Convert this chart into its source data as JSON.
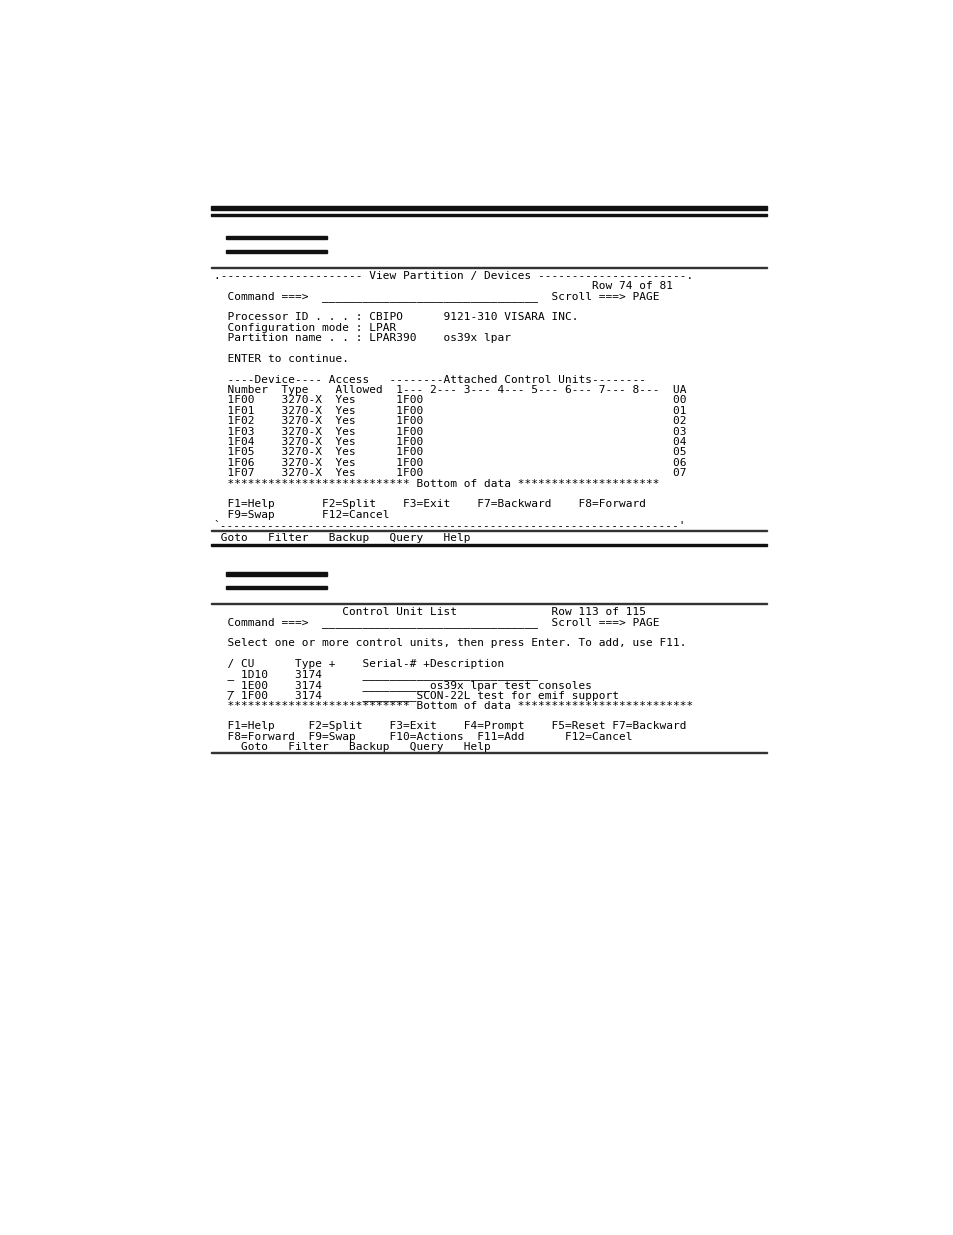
{
  "bg_color": "#ffffff",
  "text_color": "#000000",
  "panel1_lines": [
    ".--------------------- View Partition / Devices ----------------------.",
    "|                                                      Row 74 of 81  |",
    "|  Command ===>  ________________________________  Scroll ===> PAGE  |",
    "|                                                                    |",
    "|  Processor ID . . . : CBIPO      9121-310 VISARA INC.             |",
    "|  Configuration mode : LPAR                                        |",
    "|  Partition name . . : LPAR390    os39x lpar                       |",
    "|                                                                    |",
    "|  ENTER to continue.                                                |",
    "|                                                                    |",
    "|  ----Device---- Access   --------Attached Control Units--------   |",
    "|  Number  Type    Allowed  1--- 2--- 3--- 4--- 5--- 6--- 7--- 8--- UA|",
    "|  1F00    3270-X  Yes      1F00                                   00|",
    "|  1F01    3270-X  Yes      1F00                                   01|",
    "|  1F02    3270-X  Yes      1F00                                   02|",
    "|  1F03    3270-X  Yes      1F00                                   03|",
    "|  1F04    3270-X  Yes      1F00                                   04|",
    "|  1F05    3270-X  Yes      1F00                                   05|",
    "|  1F06    3270-X  Yes      1F00                                   06|",
    "|  1F07    3270-X  Yes      1F00                                   07|",
    "|  ************************** Bottom of data *********************  |",
    "|                                                                    |",
    "|  F1=Help       F2=Split    F3=Exit    F7=Backward    F8=Forward   |",
    "|  F9=Swap       F12=Cancel                                         |",
    "`--------------------------------------------------------------------'"
  ],
  "panel1_raw": [
    ".--------------------- View Partition / Devices ----------------------.",
    "                                                        Row 74 of 81",
    "  Command ===>  ________________________________  Scroll ===> PAGE",
    "",
    "  Processor ID . . . : CBIPO      9121-310 VISARA INC.",
    "  Configuration mode : LPAR",
    "  Partition name . . : LPAR390    os39x lpar",
    "",
    "  ENTER to continue.",
    "",
    "  ----Device---- Access   --------Attached Control Units--------",
    "  Number  Type    Allowed  1--- 2--- 3--- 4--- 5--- 6--- 7--- 8---  UA",
    "  1F00    3270-X  Yes      1F00                                     00",
    "  1F01    3270-X  Yes      1F00                                     01",
    "  1F02    3270-X  Yes      1F00                                     02",
    "  1F03    3270-X  Yes      1F00                                     03",
    "  1F04    3270-X  Yes      1F00                                     04",
    "  1F05    3270-X  Yes      1F00                                     05",
    "  1F06    3270-X  Yes      1F00                                     06",
    "  1F07    3270-X  Yes      1F00                                     07",
    "  *************************** Bottom of data *********************",
    "",
    "  F1=Help       F2=Split    F3=Exit    F7=Backward    F8=Forward",
    "  F9=Swap       F12=Cancel",
    "`--------------------------------------------------------------------'"
  ],
  "panel1_menu": " Goto   Filter   Backup   Query   Help",
  "panel2_raw": [
    "                   Control Unit List              Row 113 of 115",
    "  Command ===>  ________________________________  Scroll ===> PAGE",
    "",
    "  Select one or more control units, then press Enter. To add, use F11.",
    "",
    "  / CU      Type +    Serial-# +Description",
    "  _ 1D10    3174      __________________________",
    "  _ 1E00    3174      __________os39x lpar test consoles",
    "  / 1F00    3174      ________SCON-22L test for emif support",
    "  *************************** Bottom of data **************************",
    "",
    "  F1=Help     F2=Split    F3=Exit    F4=Prompt    F5=Reset F7=Backward",
    "  F8=Forward  F9=Swap     F10=Actions  F11=Add      F12=Cancel",
    "    Goto   Filter   Backup   Query   Help"
  ]
}
